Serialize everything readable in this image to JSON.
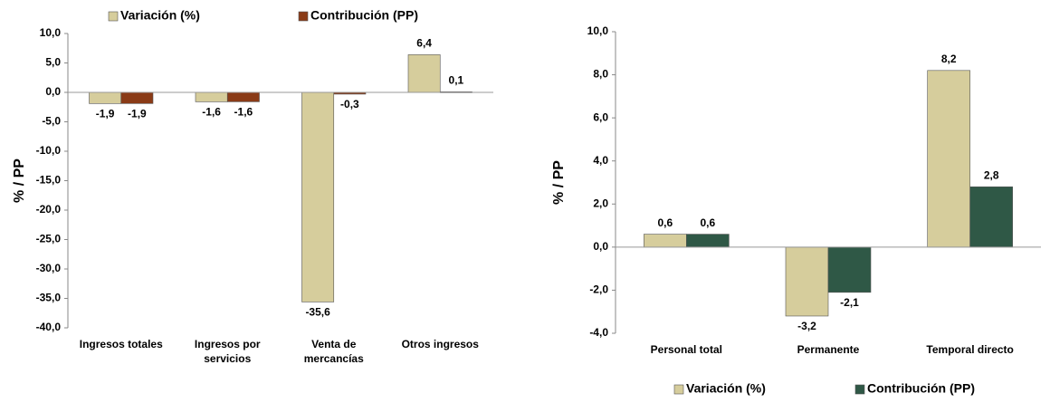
{
  "chart_data": [
    {
      "type": "bar",
      "y_label": "% / PP",
      "legend": "top",
      "categories": [
        "Ingresos totales",
        "Ingresos por servicios",
        "Venta de mercancías",
        "Otros ingresos"
      ],
      "series": [
        {
          "name": "Variación (%)",
          "color": "#d6cd9c",
          "values": [
            -1.9,
            -1.6,
            -35.6,
            6.4
          ],
          "value_labels": [
            "-1,9",
            "-1,6",
            "-35,6",
            "6,4"
          ]
        },
        {
          "name": "Contribución (PP)",
          "color": "#8a3b17",
          "values": [
            -1.9,
            -1.6,
            -0.3,
            0.1
          ],
          "value_labels": [
            "-1,9",
            "-1,6",
            "-0,3",
            "0,1"
          ]
        }
      ],
      "ylim": [
        -40,
        10
      ],
      "yticks": [
        {
          "value": -40,
          "label": "-40,0"
        },
        {
          "value": -35,
          "label": "-35,0"
        },
        {
          "value": -30,
          "label": "-30,0"
        },
        {
          "value": -25,
          "label": "-25,0"
        },
        {
          "value": -20,
          "label": "-20,0"
        },
        {
          "value": -15,
          "label": "-15,0"
        },
        {
          "value": -10,
          "label": "-10,0"
        },
        {
          "value": -5,
          "label": "-5,0"
        },
        {
          "value": 0,
          "label": "0,0"
        },
        {
          "value": 5,
          "label": "5,0"
        },
        {
          "value": 10,
          "label": "10,0"
        }
      ]
    },
    {
      "type": "bar",
      "y_label": "% / PP",
      "legend": "bottom",
      "categories": [
        "Personal total",
        "Permanente",
        "Temporal directo"
      ],
      "series": [
        {
          "name": "Variación (%)",
          "color": "#d6cd9c",
          "values": [
            0.6,
            -3.2,
            8.2
          ],
          "value_labels": [
            "0,6",
            "-3,2",
            "8,2"
          ]
        },
        {
          "name": "Contribución (PP)",
          "color": "#2f5846",
          "values": [
            0.6,
            -2.1,
            2.8
          ],
          "value_labels": [
            "0,6",
            "-2,1",
            "2,8"
          ]
        }
      ],
      "ylim": [
        -4,
        10
      ],
      "yticks": [
        {
          "value": -4,
          "label": "-4,0"
        },
        {
          "value": -2,
          "label": "-2,0"
        },
        {
          "value": 0,
          "label": "0,0"
        },
        {
          "value": 2,
          "label": "2,0"
        },
        {
          "value": 4,
          "label": "4,0"
        },
        {
          "value": 6,
          "label": "6,0"
        },
        {
          "value": 8,
          "label": "8,0"
        },
        {
          "value": 10,
          "label": "10,0"
        }
      ]
    }
  ]
}
